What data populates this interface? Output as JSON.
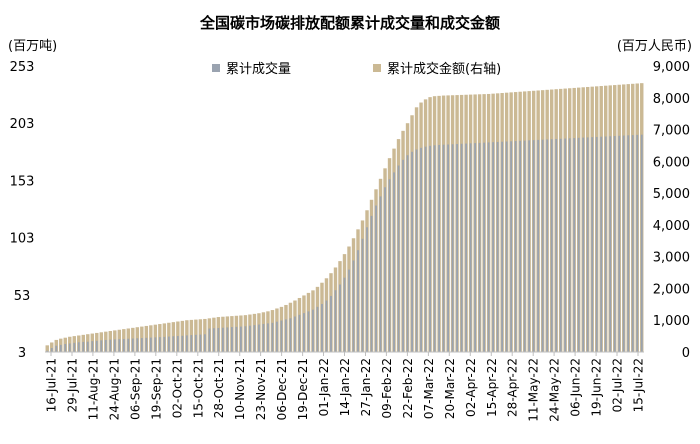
{
  "chart_data": {
    "type": "bar",
    "title": "全国碳市场碳排放配额累计成交量和成交金额",
    "left_unit": "(百万吨)",
    "right_unit": "(百万人民币)",
    "left_axis": {
      "ylim": [
        3,
        253
      ],
      "ticks": [
        "3",
        "53",
        "103",
        "153",
        "203",
        "253"
      ]
    },
    "right_axis": {
      "ylim": [
        0,
        9000
      ],
      "ticks": [
        "0",
        "1,000",
        "2,000",
        "3,000",
        "4,000",
        "5,000",
        "6,000",
        "7,000",
        "8,000",
        "9,000"
      ]
    },
    "x_tick_labels": [
      "16-Jul-21",
      "29-Jul-21",
      "11-Aug-21",
      "24-Aug-21",
      "06-Sep-21",
      "19-Sep-21",
      "02-Oct-21",
      "15-Oct-21",
      "28-Oct-21",
      "10-Nov-21",
      "23-Nov-21",
      "06-Dec-21",
      "19-Dec-21",
      "01-Jan-22",
      "14-Jan-22",
      "27-Jan-22",
      "09-Feb-22",
      "22-Feb-22",
      "07-Mar-22",
      "20-Mar-22",
      "02-Apr-22",
      "15-Apr-22",
      "28-Apr-22",
      "11-May-22",
      "24-May-22",
      "06-Jun-22",
      "19-Jun-22",
      "02-Jul-22",
      "15-Jul-22"
    ],
    "legend_position": "top-center",
    "grid": false,
    "colors": {
      "volume": "#9aa3b0",
      "amount": "#cbb994"
    },
    "series": [
      {
        "name": "累计成交量",
        "axis": "left",
        "values": [
          4.1,
          6.5,
          8.5,
          9.2,
          10.0,
          10.5,
          11.0,
          11.5,
          11.8,
          12.0,
          12.5,
          12.8,
          13.2,
          13.5,
          13.8,
          14.0,
          14.2,
          14.4,
          14.6,
          14.8,
          15.0,
          15.2,
          15.4,
          15.6,
          15.8,
          16.0,
          16.2,
          16.5,
          16.8,
          17.0,
          17.2,
          17.5,
          17.8,
          18.0,
          18.2,
          18.5,
          23.5,
          23.8,
          24.0,
          24.2,
          24.5,
          24.8,
          25.0,
          25.2,
          25.5,
          26.0,
          26.5,
          27.0,
          27.5,
          28.0,
          28.5,
          29.5,
          30.5,
          31.5,
          32.5,
          34.0,
          35.5,
          37.0,
          38.5,
          40.0,
          42.5,
          45.0,
          48.0,
          52.0,
          57.0,
          62.0,
          68.0,
          75.0,
          83.0,
          92.0,
          102.0,
          112.0,
          122.0,
          131.0,
          139.0,
          147.0,
          154.0,
          160.0,
          166.0,
          171.0,
          175.0,
          178.0,
          180.0,
          181.5,
          182.5,
          183.2,
          183.7,
          184.0,
          184.2,
          184.4,
          184.6,
          184.8,
          185.0,
          185.2,
          185.4,
          185.6,
          185.8,
          186.0,
          186.2,
          186.4,
          186.6,
          186.8,
          187.0,
          187.2,
          187.4,
          187.6,
          187.8,
          188.0,
          188.2,
          188.4,
          188.6,
          188.8,
          189.0,
          189.2,
          189.4,
          189.6,
          189.8,
          190.0,
          190.2,
          190.4,
          190.6,
          190.8,
          191.0,
          191.2,
          191.4,
          191.6,
          191.8,
          192.0,
          192.2,
          192.4,
          192.6,
          192.8,
          193.0
        ]
      },
      {
        "name": "累计成交金额(右轴)",
        "axis": "right",
        "values": [
          210,
          300,
          380,
          420,
          450,
          480,
          500,
          520,
          540,
          560,
          580,
          600,
          620,
          640,
          660,
          680,
          700,
          720,
          740,
          760,
          780,
          800,
          820,
          840,
          860,
          880,
          900,
          920,
          940,
          960,
          980,
          1000,
          1010,
          1020,
          1030,
          1040,
          1060,
          1080,
          1100,
          1110,
          1120,
          1130,
          1140,
          1150,
          1160,
          1180,
          1200,
          1220,
          1250,
          1280,
          1320,
          1370,
          1420,
          1480,
          1550,
          1620,
          1700,
          1780,
          1860,
          1940,
          2050,
          2180,
          2320,
          2480,
          2660,
          2860,
          3080,
          3320,
          3580,
          3860,
          4140,
          4460,
          4790,
          5120,
          5450,
          5780,
          6100,
          6400,
          6700,
          6960,
          7200,
          7450,
          7700,
          7850,
          7950,
          8020,
          8050,
          8060,
          8070,
          8075,
          8080,
          8085,
          8090,
          8095,
          8100,
          8105,
          8110,
          8115,
          8120,
          8130,
          8140,
          8150,
          8160,
          8170,
          8180,
          8190,
          8200,
          8210,
          8220,
          8230,
          8240,
          8250,
          8260,
          8270,
          8280,
          8290,
          8300,
          8310,
          8320,
          8330,
          8340,
          8350,
          8360,
          8370,
          8380,
          8390,
          8400,
          8410,
          8420,
          8430,
          8440,
          8450,
          8460
        ]
      }
    ]
  }
}
